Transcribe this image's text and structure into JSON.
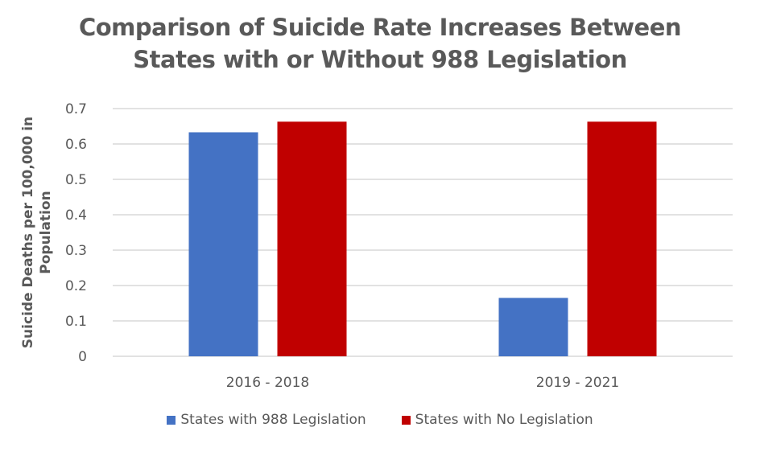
{
  "chart_data": {
    "type": "bar",
    "title_lines": [
      "Comparison of Suicide Rate Increases Between",
      "States with or Without 988 Legislation"
    ],
    "xlabel": "",
    "ylabel_lines": [
      "Suicide Deaths per 100,000 in",
      "Population"
    ],
    "categories": [
      "2016 - 2018",
      "2019 - 2021"
    ],
    "series": [
      {
        "name": "States with 988 Legislation",
        "color": "#4472C4",
        "values": [
          0.633,
          0.165
        ]
      },
      {
        "name": "States with No Legislation",
        "color": "#C00000",
        "values": [
          0.663,
          0.663
        ]
      }
    ],
    "ylim": [
      0,
      0.7
    ],
    "yticks": [
      "0",
      "0.1",
      "0.2",
      "0.3",
      "0.4",
      "0.5",
      "0.6",
      "0.7"
    ],
    "grid": true,
    "legend_position": "bottom"
  }
}
